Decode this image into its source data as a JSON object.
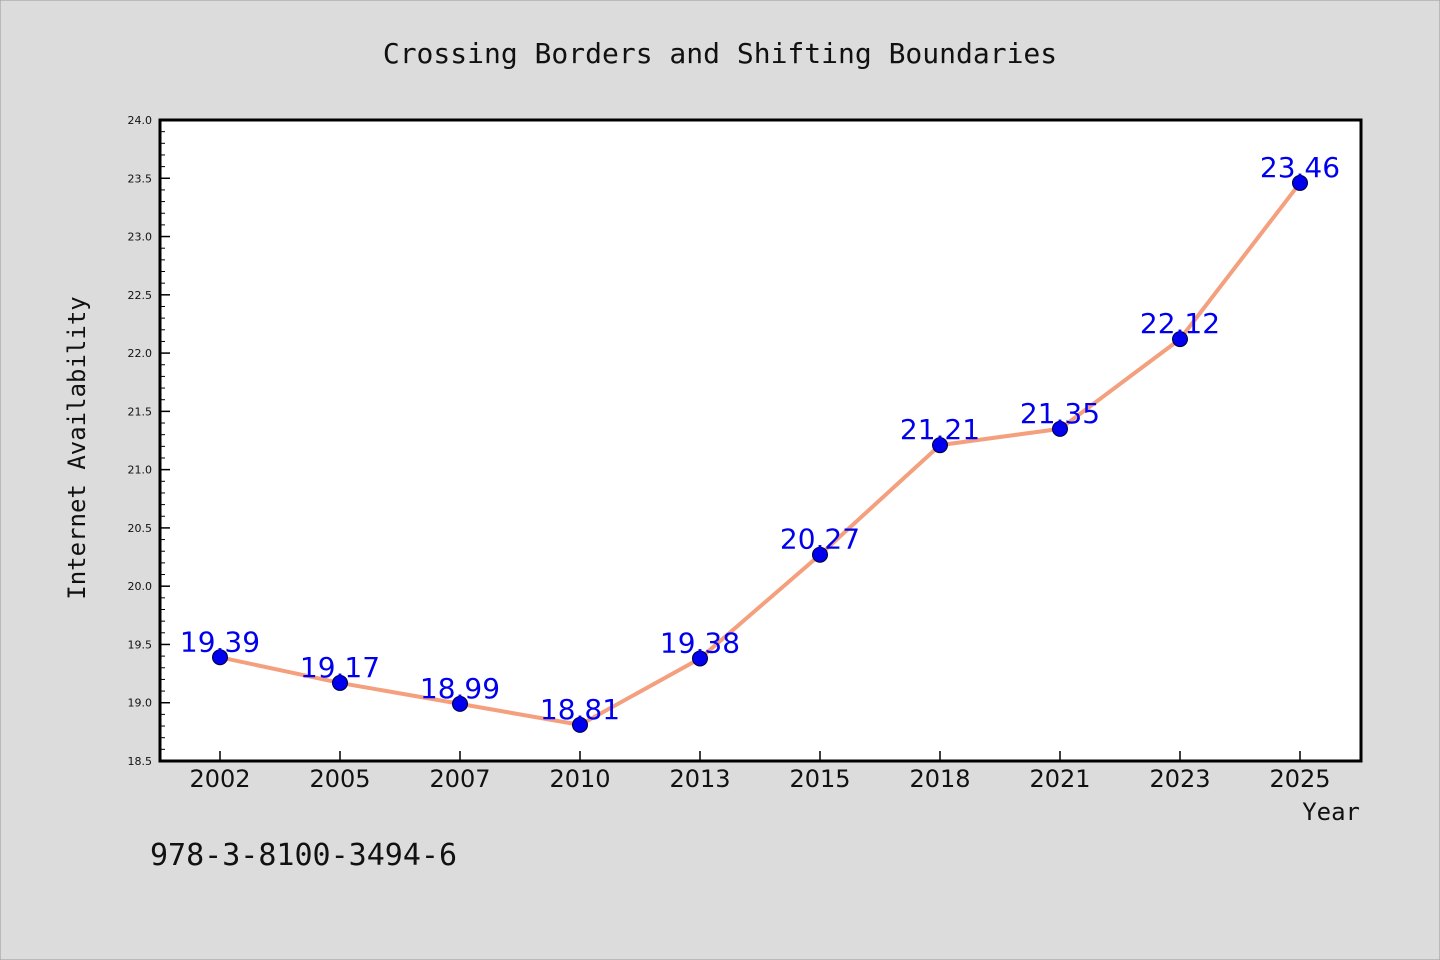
{
  "page": {
    "isbn_text": "978-3-8100-3494-6"
  },
  "colors": {
    "background": "#dcdcdc",
    "plot_background": "#ffffff",
    "line": "#f4a07e",
    "marker": "#0000ee",
    "data_label": "#0000ee",
    "text": "#111111"
  },
  "chart_data": {
    "type": "line",
    "title": "Crossing Borders and Shifting Boundaries",
    "xlabel": "Year",
    "ylabel": "Internet Availability",
    "categories": [
      "2002",
      "2005",
      "2007",
      "2010",
      "2013",
      "2015",
      "2018",
      "2021",
      "2023",
      "2025"
    ],
    "values": [
      19.39,
      19.17,
      18.99,
      18.81,
      19.38,
      20.27,
      21.21,
      21.35,
      22.12,
      23.46
    ],
    "data_labels": [
      "19.39",
      "19.17",
      "18.99",
      "18.81",
      "19.38",
      "20.27",
      "21.21",
      "21.35",
      "22.12",
      "23.46"
    ],
    "ylim": [
      18.5,
      24.0
    ],
    "yticks": [
      "18.5",
      "19.0",
      "19.5",
      "20.0",
      "20.5",
      "21.0",
      "21.5",
      "22.0",
      "22.5",
      "23.0",
      "23.5",
      "24.0"
    ],
    "grid": false,
    "legend": "none"
  }
}
